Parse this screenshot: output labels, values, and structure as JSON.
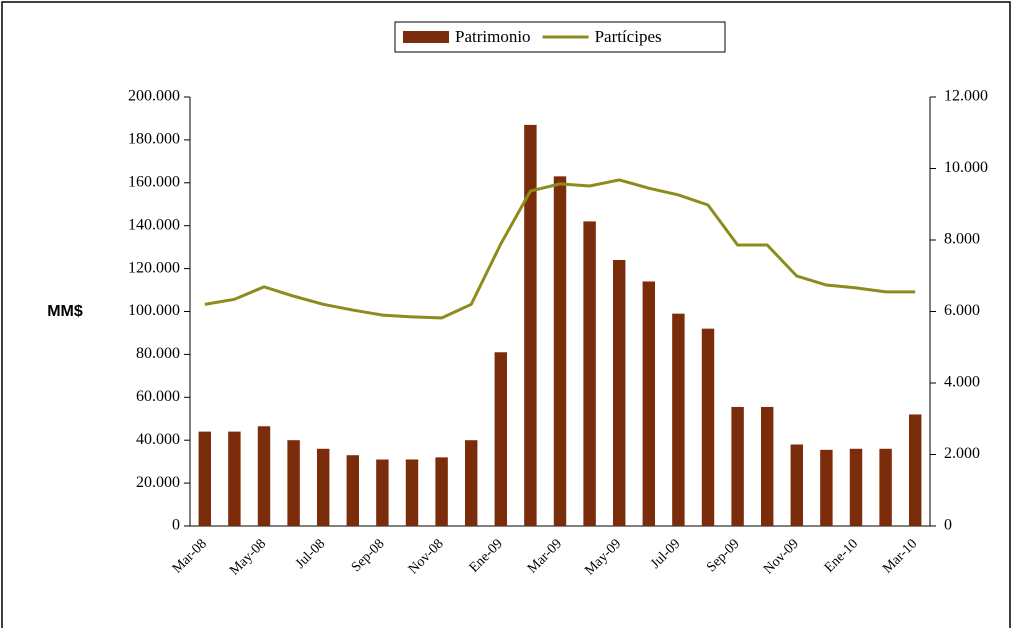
{
  "chart_data": {
    "type": "bar_line",
    "ylabel": "MM$",
    "categories": [
      "Mar-08",
      null,
      "May-08",
      null,
      "Jul-08",
      null,
      "Sep-08",
      null,
      "Nov-08",
      null,
      "Ene-09",
      null,
      "Mar-09",
      null,
      "May-09",
      null,
      "Jul-09",
      null,
      "Sep-09",
      null,
      "Nov-09",
      null,
      "Ene-10",
      null,
      "Mar-10"
    ],
    "series": [
      {
        "name": "Patrimonio",
        "type": "bar",
        "color": "#7b2c0a",
        "axis": "y",
        "values": [
          44000,
          44000,
          46500,
          40000,
          36000,
          33000,
          31000,
          31000,
          32000,
          40000,
          81000,
          187000,
          163000,
          142000,
          124000,
          114000,
          99000,
          92000,
          55500,
          55500,
          38000,
          35500,
          36000,
          36000,
          52000
        ]
      },
      {
        "name": "Partícipes",
        "type": "line",
        "color": "#8c8c1c",
        "axis": "y2",
        "values": [
          6200,
          6340,
          6690,
          6430,
          6200,
          6040,
          5900,
          5850,
          5820,
          6200,
          7890,
          9370,
          9570,
          9510,
          9680,
          9450,
          9260,
          8980,
          7860,
          7860,
          6990,
          6740,
          6660,
          6550,
          6550
        ]
      }
    ],
    "ylim": [
      0,
      200000
    ],
    "yticks": [
      0,
      {
        "value": 20000,
        "label": "20.000"
      },
      {
        "value": 40000,
        "label": "40.000"
      },
      {
        "value": 60000,
        "label": "60.000"
      },
      {
        "value": 80000,
        "label": "80.000"
      },
      {
        "value": 100000,
        "label": "100.000"
      },
      {
        "value": 120000,
        "label": "120.000"
      },
      {
        "value": 140000,
        "label": "140.000"
      },
      {
        "value": 160000,
        "label": "160.000"
      },
      {
        "value": 180000,
        "label": "180.000"
      },
      {
        "value": 200000,
        "label": "200.000"
      }
    ],
    "y2lim": [
      0,
      12000
    ],
    "y2ticks": [
      0,
      {
        "value": 2000,
        "label": "2.000"
      },
      {
        "value": 4000,
        "label": "4.000"
      },
      {
        "value": 6000,
        "label": "6.000"
      },
      {
        "value": 8000,
        "label": "8.000"
      },
      {
        "value": 10000,
        "label": "10.000"
      },
      {
        "value": 12000,
        "label": "12.000"
      }
    ],
    "legend": "top"
  }
}
